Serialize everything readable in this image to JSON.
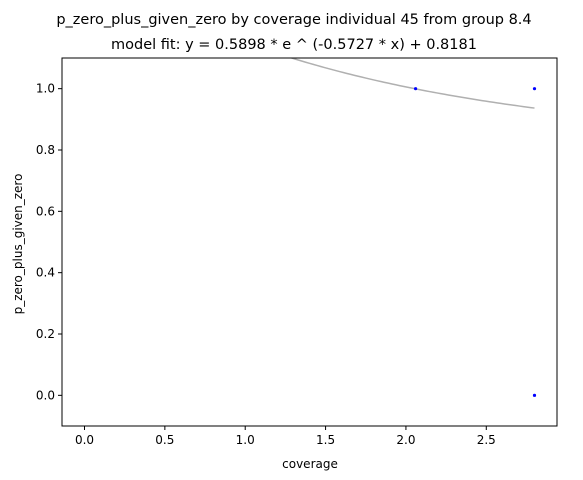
{
  "chart_data": {
    "type": "scatter",
    "title": "p_zero_plus_given_zero by coverage individual 45 from group 8.4",
    "subtitle": "model fit: y = 0.5898 * e ^ (-0.5727 * x) + 0.8181",
    "xlabel": "coverage",
    "ylabel": "p_zero_plus_given_zero",
    "xlim": [
      -0.14,
      2.94
    ],
    "ylim": [
      -0.1,
      1.1
    ],
    "xticks": [
      0.0,
      0.5,
      1.0,
      1.5,
      2.0,
      2.5
    ],
    "xtick_labels": [
      "0.0",
      "0.5",
      "1.0",
      "1.5",
      "2.0",
      "2.5"
    ],
    "yticks": [
      0.0,
      0.2,
      0.4,
      0.6,
      0.8,
      1.0
    ],
    "ytick_labels": [
      "0.0",
      "0.2",
      "0.4",
      "0.6",
      "0.8",
      "1.0"
    ],
    "grid": false,
    "points": [
      {
        "x": 2.06,
        "y": 1.0
      },
      {
        "x": 2.8,
        "y": 1.0
      },
      {
        "x": 2.8,
        "y": 0.0
      }
    ],
    "fit": {
      "a": 0.5898,
      "b": -0.5727,
      "c": 0.8181,
      "x_range": [
        0.0,
        2.8
      ]
    },
    "point_color": "#0000ff",
    "fit_color": "#b0b0b0"
  }
}
